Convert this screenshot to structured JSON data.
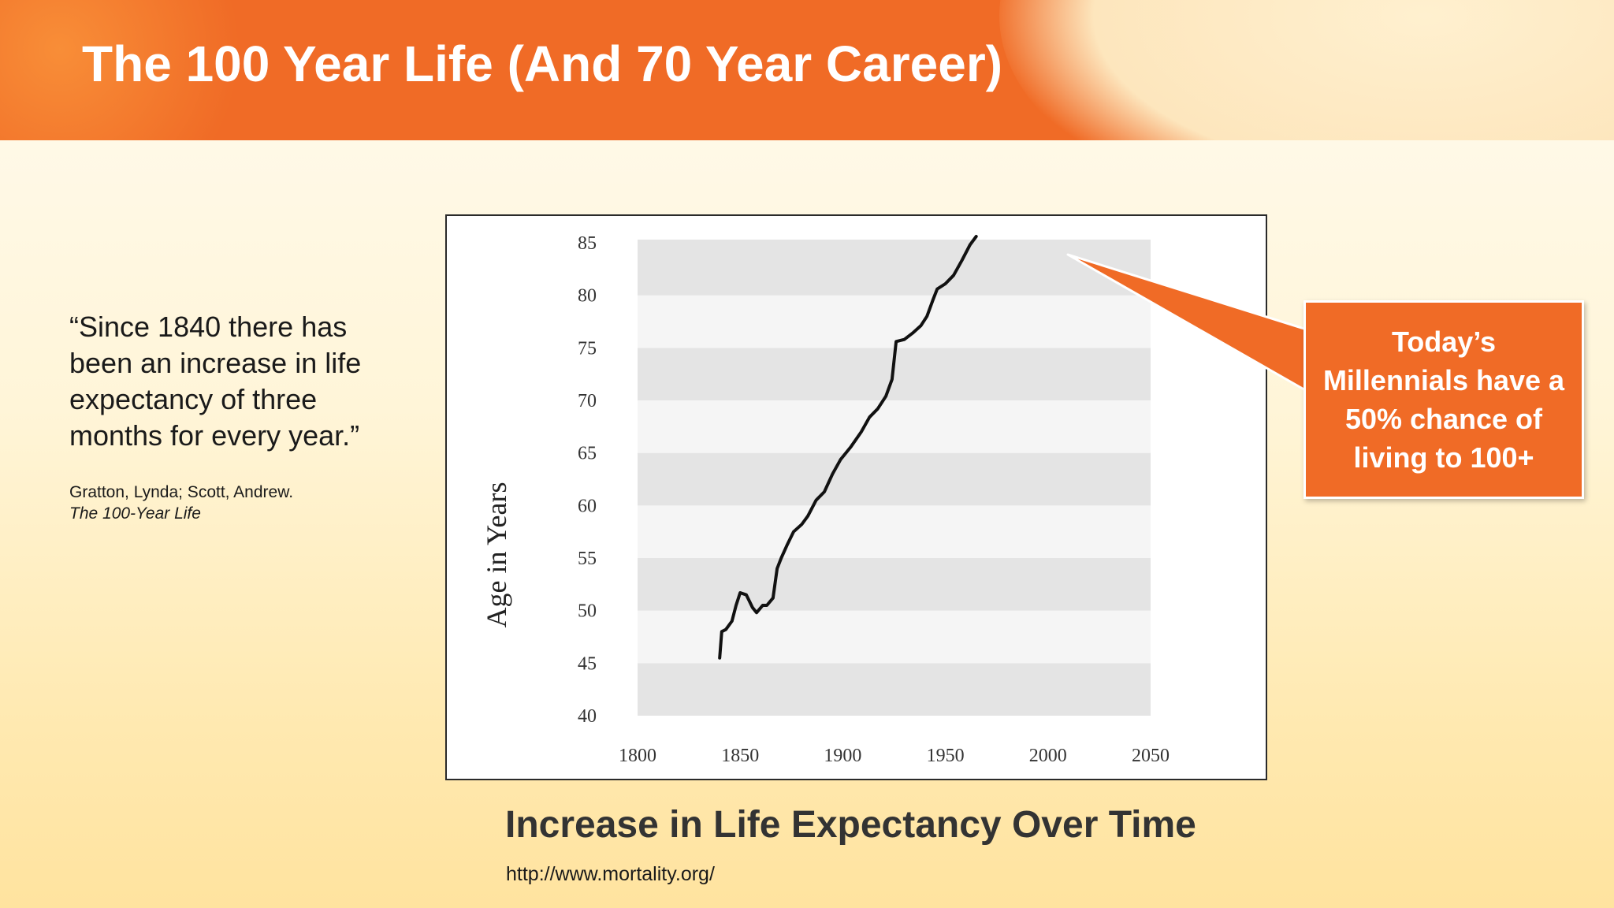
{
  "slide": {
    "title": "The 100 Year Life (And 70 Year Career)",
    "quote": "“Since 1840 there has been an increase in life expectancy of three months for every year.”",
    "citation_authors": "Gratton, Lynda; Scott, Andrew.",
    "citation_book": "The 100-Year Life",
    "caption": "Increase in Life Expectancy Over Time",
    "source_url": "http://www.mortality.org/",
    "callout": "Today’s Millennials have a 50% chance of living to 100+"
  },
  "colors": {
    "accent": "#f06b26",
    "band_dark": "#e4e4e4",
    "band_light": "#f5f5f5",
    "line": "#111111"
  },
  "chart_data": {
    "type": "line",
    "title": "",
    "xlabel": "",
    "ylabel": "Age in Years",
    "xlim": [
      1800,
      2050
    ],
    "ylim": [
      40,
      85
    ],
    "x_ticks": [
      1800,
      1850,
      1900,
      1950,
      2000,
      2050
    ],
    "y_ticks": [
      40,
      45,
      50,
      55,
      60,
      65,
      70,
      75,
      80,
      85
    ],
    "grid": "alternating horizontal bands",
    "series": [
      {
        "values_xy": [
          [
            1840,
            45.5
          ],
          [
            1841,
            48.0
          ],
          [
            1843,
            48.2
          ],
          [
            1846,
            49.0
          ],
          [
            1848,
            50.5
          ],
          [
            1850,
            51.7
          ],
          [
            1853,
            51.5
          ],
          [
            1856,
            50.3
          ],
          [
            1858,
            49.8
          ],
          [
            1861,
            50.5
          ],
          [
            1863,
            50.5
          ],
          [
            1866,
            51.2
          ],
          [
            1868,
            54.0
          ],
          [
            1870,
            55.0
          ],
          [
            1873,
            56.3
          ],
          [
            1876,
            57.5
          ],
          [
            1880,
            58.2
          ],
          [
            1883,
            59.0
          ],
          [
            1887,
            60.5
          ],
          [
            1891,
            61.3
          ],
          [
            1895,
            63.0
          ],
          [
            1899,
            64.4
          ],
          [
            1904,
            65.6
          ],
          [
            1909,
            67.0
          ],
          [
            1913,
            68.4
          ],
          [
            1917,
            69.2
          ],
          [
            1921,
            70.4
          ],
          [
            1924,
            72.0
          ],
          [
            1926,
            75.6
          ],
          [
            1930,
            75.8
          ],
          [
            1934,
            76.4
          ],
          [
            1938,
            77.1
          ],
          [
            1941,
            78.0
          ],
          [
            1944,
            79.6
          ],
          [
            1946,
            80.6
          ],
          [
            1950,
            81.1
          ],
          [
            1954,
            81.9
          ],
          [
            1958,
            83.3
          ],
          [
            1962,
            84.8
          ],
          [
            1965,
            85.6
          ]
        ]
      }
    ]
  }
}
